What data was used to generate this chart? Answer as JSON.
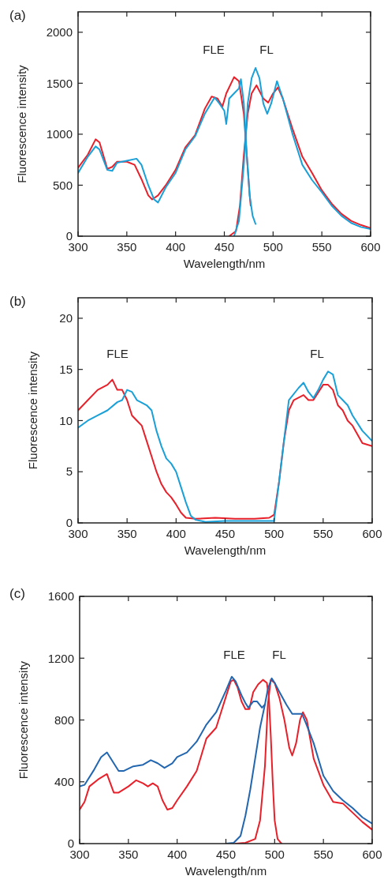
{
  "chart_data": [
    {
      "type": "line",
      "title": "(a)",
      "xlabel": "Wavelength/nm",
      "ylabel": "Fluorescence intensity",
      "xlim": [
        300,
        600
      ],
      "xticks": [
        300,
        350,
        400,
        450,
        500,
        550,
        600
      ],
      "ylim": [
        0,
        2200
      ],
      "yticks": [
        0,
        500,
        1000,
        1500,
        2000
      ],
      "grid": false,
      "annotations": [
        "FLE",
        "FL"
      ],
      "series": [
        {
          "color": "#e8202a",
          "x": [
            300,
            310,
            318,
            322,
            330,
            335,
            340,
            350,
            358,
            365,
            372,
            376,
            382,
            390,
            400,
            410,
            420,
            430,
            437,
            443,
            448,
            452,
            460,
            465,
            470,
            473,
            476,
            477
          ],
          "values": [
            670,
            800,
            950,
            920,
            660,
            680,
            730,
            730,
            700,
            560,
            400,
            360,
            400,
            500,
            650,
            870,
            990,
            1250,
            1370,
            1350,
            1270,
            1400,
            1560,
            1520,
            1200,
            800,
            400,
            300
          ]
        },
        {
          "color": "#e8202a",
          "x": [
            455,
            462,
            466,
            470,
            474,
            478,
            483,
            490,
            495,
            500,
            505,
            510,
            520,
            530,
            540,
            550,
            560,
            570,
            580,
            590,
            600
          ],
          "values": [
            0,
            50,
            300,
            800,
            1200,
            1400,
            1480,
            1350,
            1310,
            1400,
            1460,
            1350,
            1050,
            780,
            620,
            450,
            320,
            220,
            150,
            110,
            80
          ]
        },
        {
          "color": "#1aa0d8",
          "x": [
            300,
            310,
            318,
            322,
            330,
            335,
            340,
            350,
            360,
            365,
            372,
            378,
            382,
            390,
            400,
            410,
            420,
            430,
            440,
            445,
            450,
            452,
            455,
            460,
            465,
            467,
            470,
            473,
            476,
            479,
            482
          ],
          "values": [
            620,
            780,
            880,
            850,
            650,
            640,
            720,
            740,
            760,
            700,
            500,
            360,
            330,
            480,
            620,
            850,
            980,
            1200,
            1360,
            1300,
            1230,
            1100,
            1350,
            1400,
            1450,
            1540,
            1300,
            800,
            400,
            200,
            120
          ]
        },
        {
          "color": "#1aa0d8",
          "x": [
            460,
            465,
            470,
            474,
            478,
            482,
            486,
            490,
            494,
            498,
            504,
            510,
            520,
            530,
            540,
            550,
            560,
            570,
            580,
            590,
            600
          ],
          "values": [
            0,
            150,
            700,
            1300,
            1550,
            1650,
            1550,
            1300,
            1200,
            1300,
            1520,
            1350,
            1000,
            700,
            550,
            430,
            300,
            200,
            130,
            90,
            70
          ]
        }
      ]
    },
    {
      "type": "line",
      "title": "(b)",
      "xlabel": "Wavelength/nm",
      "ylabel": "Fluorescence intensity",
      "xlim": [
        300,
        600
      ],
      "xticks": [
        300,
        350,
        400,
        450,
        500,
        550,
        600
      ],
      "ylim": [
        0,
        22
      ],
      "yticks": [
        0,
        5,
        10,
        15,
        20
      ],
      "grid": false,
      "annotations": [
        "FLE",
        "FL"
      ],
      "series": [
        {
          "color": "#e8202a",
          "x": [
            300,
            310,
            320,
            330,
            335,
            340,
            345,
            350,
            355,
            360,
            365,
            370,
            375,
            380,
            385,
            390,
            395,
            400,
            405,
            410,
            420,
            440,
            460,
            480,
            495,
            500
          ],
          "values": [
            11,
            12,
            13,
            13.5,
            14,
            13,
            13,
            12,
            10.5,
            10,
            9.5,
            8,
            6.5,
            5,
            3.8,
            3,
            2.5,
            1.8,
            1,
            0.5,
            0.4,
            0.5,
            0.4,
            0.4,
            0.5,
            0.8
          ]
        },
        {
          "color": "#1aa0d8",
          "x": [
            300,
            310,
            320,
            330,
            340,
            345,
            350,
            355,
            360,
            370,
            375,
            380,
            385,
            390,
            395,
            400,
            405,
            410,
            415,
            420,
            430,
            450,
            480,
            500
          ],
          "values": [
            9.3,
            10,
            10.5,
            11,
            11.8,
            12,
            13,
            12.8,
            12,
            11.5,
            11,
            9,
            7.5,
            6.3,
            5.8,
            5,
            3.5,
            2,
            0.7,
            0.3,
            0.1,
            0.2,
            0.2,
            0.2
          ]
        },
        {
          "color": "#e8202a",
          "x": [
            500,
            505,
            510,
            515,
            520,
            530,
            535,
            540,
            550,
            555,
            560,
            565,
            570,
            575,
            580,
            590,
            600
          ],
          "values": [
            0.8,
            4,
            8,
            11,
            12,
            12.5,
            12,
            12,
            13.5,
            13.5,
            13,
            11.5,
            11,
            10,
            9.5,
            7.8,
            7.5
          ]
        },
        {
          "color": "#1aa0d8",
          "x": [
            500,
            505,
            510,
            515,
            525,
            530,
            535,
            540,
            545,
            550,
            555,
            560,
            565,
            570,
            575,
            580,
            590,
            600
          ],
          "values": [
            0.3,
            4,
            8,
            12,
            13.2,
            13.7,
            12.8,
            12.2,
            13,
            14,
            14.8,
            14.5,
            12.5,
            12,
            11.5,
            10.5,
            9,
            8
          ]
        }
      ]
    },
    {
      "type": "line",
      "title": "(c)",
      "xlabel": "Wavelength/nm",
      "ylabel": "Fluorescence intensity",
      "xlim": [
        300,
        600
      ],
      "xticks": [
        300,
        350,
        400,
        450,
        500,
        550,
        600
      ],
      "ylim": [
        0,
        1600
      ],
      "yticks": [
        0,
        400,
        800,
        1200,
        1600
      ],
      "grid": false,
      "annotations": [
        "FLE",
        "FL"
      ],
      "series": [
        {
          "color": "#e8202a",
          "x": [
            300,
            305,
            310,
            320,
            328,
            335,
            340,
            350,
            358,
            365,
            370,
            375,
            380,
            385,
            390,
            395,
            400,
            410,
            420,
            430,
            440,
            445,
            450,
            455,
            458,
            462,
            466,
            470,
            474,
            478,
            483,
            488,
            492,
            494,
            496,
            498,
            500,
            503,
            507
          ],
          "values": [
            220,
            270,
            370,
            420,
            450,
            330,
            330,
            370,
            410,
            390,
            370,
            390,
            370,
            280,
            220,
            230,
            280,
            370,
            470,
            680,
            750,
            850,
            950,
            1050,
            1060,
            1010,
            920,
            870,
            870,
            980,
            1030,
            1060,
            1040,
            950,
            700,
            400,
            150,
            30,
            0
          ]
        },
        {
          "color": "#e8202a",
          "x": [
            460,
            470,
            480,
            485,
            490,
            493,
            496,
            500,
            505,
            510,
            515,
            518,
            522,
            526,
            529,
            533,
            540,
            550,
            560,
            570,
            580,
            590,
            600
          ],
          "values": [
            0,
            5,
            30,
            150,
            500,
            900,
            1060,
            1040,
            940,
            800,
            620,
            570,
            650,
            800,
            850,
            800,
            550,
            380,
            270,
            260,
            200,
            140,
            90
          ]
        },
        {
          "color": "#2266b0",
          "x": [
            300,
            305,
            315,
            322,
            328,
            335,
            340,
            345,
            355,
            365,
            373,
            380,
            387,
            395,
            400,
            410,
            420,
            430,
            440,
            450,
            456,
            460,
            466,
            470,
            473,
            478,
            482,
            487,
            490
          ],
          "values": [
            370,
            380,
            480,
            560,
            590,
            520,
            470,
            470,
            500,
            510,
            540,
            520,
            490,
            520,
            560,
            590,
            660,
            770,
            850,
            990,
            1080,
            1050,
            960,
            910,
            880,
            920,
            920,
            880,
            900
          ]
        },
        {
          "color": "#2266b0",
          "x": [
            450,
            458,
            465,
            470,
            475,
            480,
            485,
            490,
            493,
            497,
            500,
            505,
            512,
            518,
            524,
            528,
            532,
            540,
            550,
            560,
            570,
            580,
            590,
            600
          ],
          "values": [
            0,
            5,
            50,
            180,
            350,
            550,
            750,
            900,
            1000,
            1070,
            1040,
            980,
            900,
            840,
            840,
            840,
            780,
            650,
            440,
            340,
            280,
            230,
            170,
            130
          ]
        }
      ]
    }
  ]
}
